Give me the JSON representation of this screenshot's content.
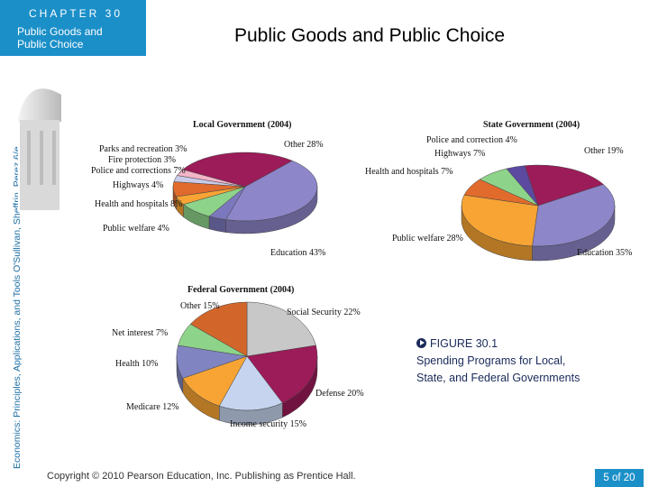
{
  "header": {
    "chapter_label": "CHAPTER 30",
    "chapter_subtitle": "Public Goods and Public Choice",
    "page_title": "Public Goods and Public Choice"
  },
  "sidebar": {
    "book_credit": "Economics: Principles, Applications, and Tools  O'Sullivan, Sheffrin, Perez  6/e."
  },
  "caption": {
    "figure_label": "FIGURE 30.1",
    "figure_text": "Spending Programs for Local, State, and Federal Governments"
  },
  "footer": {
    "copyright": "Copyright © 2010  Pearson Education, Inc. Publishing as Prentice Hall.",
    "page_number": "5 of 20"
  },
  "colors": {
    "accent": "#1b8fc8",
    "education": "#8d86c9",
    "other": "#9c1b59",
    "public_welfare": "#8d86c9",
    "health": "#f7a434",
    "police": "#e06b2c",
    "highways": "#8ed38a",
    "fire": "#c9cbe8",
    "parks": "#f3b5c8",
    "social_security": "#c8c8c8",
    "defense": "#9c1b59",
    "income_security": "#c6d4ef",
    "medicare": "#f7a434",
    "federal_health": "#8085c2",
    "net_interest": "#8ed38a",
    "federal_other": "#d2662a"
  },
  "chart_data": [
    {
      "type": "pie",
      "title": "Local Government (2004)",
      "slices": [
        {
          "label": "Other",
          "value": 28,
          "display": "Other 28%",
          "color": "#9c1b59"
        },
        {
          "label": "Education",
          "value": 43,
          "display": "Education 43%",
          "color": "#8d86c9"
        },
        {
          "label": "Public welfare",
          "value": 4,
          "display": "Public welfare 4%",
          "color": "#7c78bd"
        },
        {
          "label": "Health and hospitals",
          "value": 8,
          "display": "Health and hospitals 8%",
          "color": "#8ed38a"
        },
        {
          "label": "Highways",
          "value": 4,
          "display": "Highways 4%",
          "color": "#f7a434"
        },
        {
          "label": "Police and corrections",
          "value": 7,
          "display": "Police and corrections 7%",
          "color": "#e06b2c"
        },
        {
          "label": "Fire protection",
          "value": 3,
          "display": "Fire protection 3%",
          "color": "#c9cbe8"
        },
        {
          "label": "Parks and recreation",
          "value": 3,
          "display": "Parks and recreation 3%",
          "color": "#f3b5c8"
        }
      ]
    },
    {
      "type": "pie",
      "title": "State Government (2004)",
      "slices": [
        {
          "label": "Other",
          "value": 19,
          "display": "Other 19%",
          "color": "#9c1b59"
        },
        {
          "label": "Education",
          "value": 35,
          "display": "Education 35%",
          "color": "#8d86c9"
        },
        {
          "label": "Public welfare",
          "value": 28,
          "display": "Public welfare 28%",
          "color": "#f7a434"
        },
        {
          "label": "Health and hospitals",
          "value": 7,
          "display": "Health and hospitals 7%",
          "color": "#e06b2c"
        },
        {
          "label": "Highways",
          "value": 7,
          "display": "Highways 7%",
          "color": "#8ed38a"
        },
        {
          "label": "Police and correction",
          "value": 4,
          "display": "Police and correction 4%",
          "color": "#5b4aa0"
        }
      ]
    },
    {
      "type": "pie",
      "title": "Federal Government (2004)",
      "slices": [
        {
          "label": "Social Security",
          "value": 22,
          "display": "Social Security 22%",
          "color": "#c8c8c8"
        },
        {
          "label": "Defense",
          "value": 20,
          "display": "Defense 20%",
          "color": "#9c1b59"
        },
        {
          "label": "Income security",
          "value": 15,
          "display": "Income security 15%",
          "color": "#c6d4ef"
        },
        {
          "label": "Medicare",
          "value": 12,
          "display": "Medicare 12%",
          "color": "#f7a434"
        },
        {
          "label": "Health",
          "value": 10,
          "display": "Health 10%",
          "color": "#8085c2"
        },
        {
          "label": "Net interest",
          "value": 7,
          "display": "Net interest 7%",
          "color": "#8ed38a"
        },
        {
          "label": "Other",
          "value": 15,
          "display": "Other 15%",
          "color": "#d2662a"
        }
      ]
    }
  ]
}
